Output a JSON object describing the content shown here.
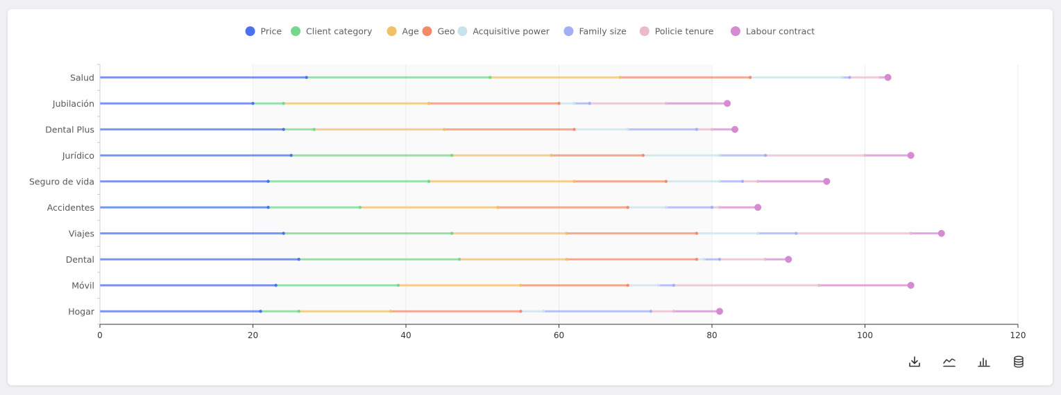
{
  "chart_data": {
    "type": "bar",
    "stacked": true,
    "orientation": "horizontal",
    "categories": [
      "Salud",
      "Jubilación",
      "Dental Plus",
      "Jurídico",
      "Seguro de vida",
      "Accidentes",
      "Viajes",
      "Dental",
      "Móvil",
      "Hogar"
    ],
    "series": [
      {
        "name": "Price",
        "color": "#4b70f0",
        "values": [
          27,
          20,
          24,
          25,
          22,
          22,
          24,
          26,
          23,
          21
        ]
      },
      {
        "name": "Client category",
        "color": "#76d68c",
        "values": [
          24,
          4,
          4,
          21,
          21,
          12,
          22,
          21,
          16,
          5
        ]
      },
      {
        "name": "Age",
        "color": "#f2c069",
        "values": [
          17,
          19,
          17,
          13,
          19,
          18,
          15,
          14,
          16,
          12
        ]
      },
      {
        "name": "Geo",
        "color": "#f28a6b",
        "values": [
          17,
          17,
          17,
          12,
          12,
          17,
          17,
          17,
          14,
          17
        ]
      },
      {
        "name": "Acquisitive power",
        "color": "#c8e3ec",
        "values": [
          12,
          2,
          7,
          10,
          7,
          5,
          8,
          1,
          4,
          3
        ]
      },
      {
        "name": "Family size",
        "color": "#a3aef5",
        "values": [
          1,
          2,
          9,
          6,
          3,
          6,
          5,
          2,
          2,
          14
        ]
      },
      {
        "name": "Policie tenure",
        "color": "#eab9cf",
        "values": [
          4,
          10,
          2,
          13,
          2,
          1,
          15,
          6,
          19,
          3
        ]
      },
      {
        "name": "Labour contract",
        "color": "#d48bd1",
        "values": [
          1,
          8,
          3,
          6,
          9,
          5,
          4,
          3,
          12,
          6
        ]
      }
    ],
    "xlim": [
      0,
      120
    ],
    "xticks": [
      0,
      20,
      40,
      60,
      80,
      100,
      120
    ],
    "grid": true,
    "legend": "top-center"
  },
  "toolbar": {
    "icons": [
      "download-icon",
      "line-chart-icon",
      "bar-chart-icon",
      "database-icon"
    ]
  }
}
